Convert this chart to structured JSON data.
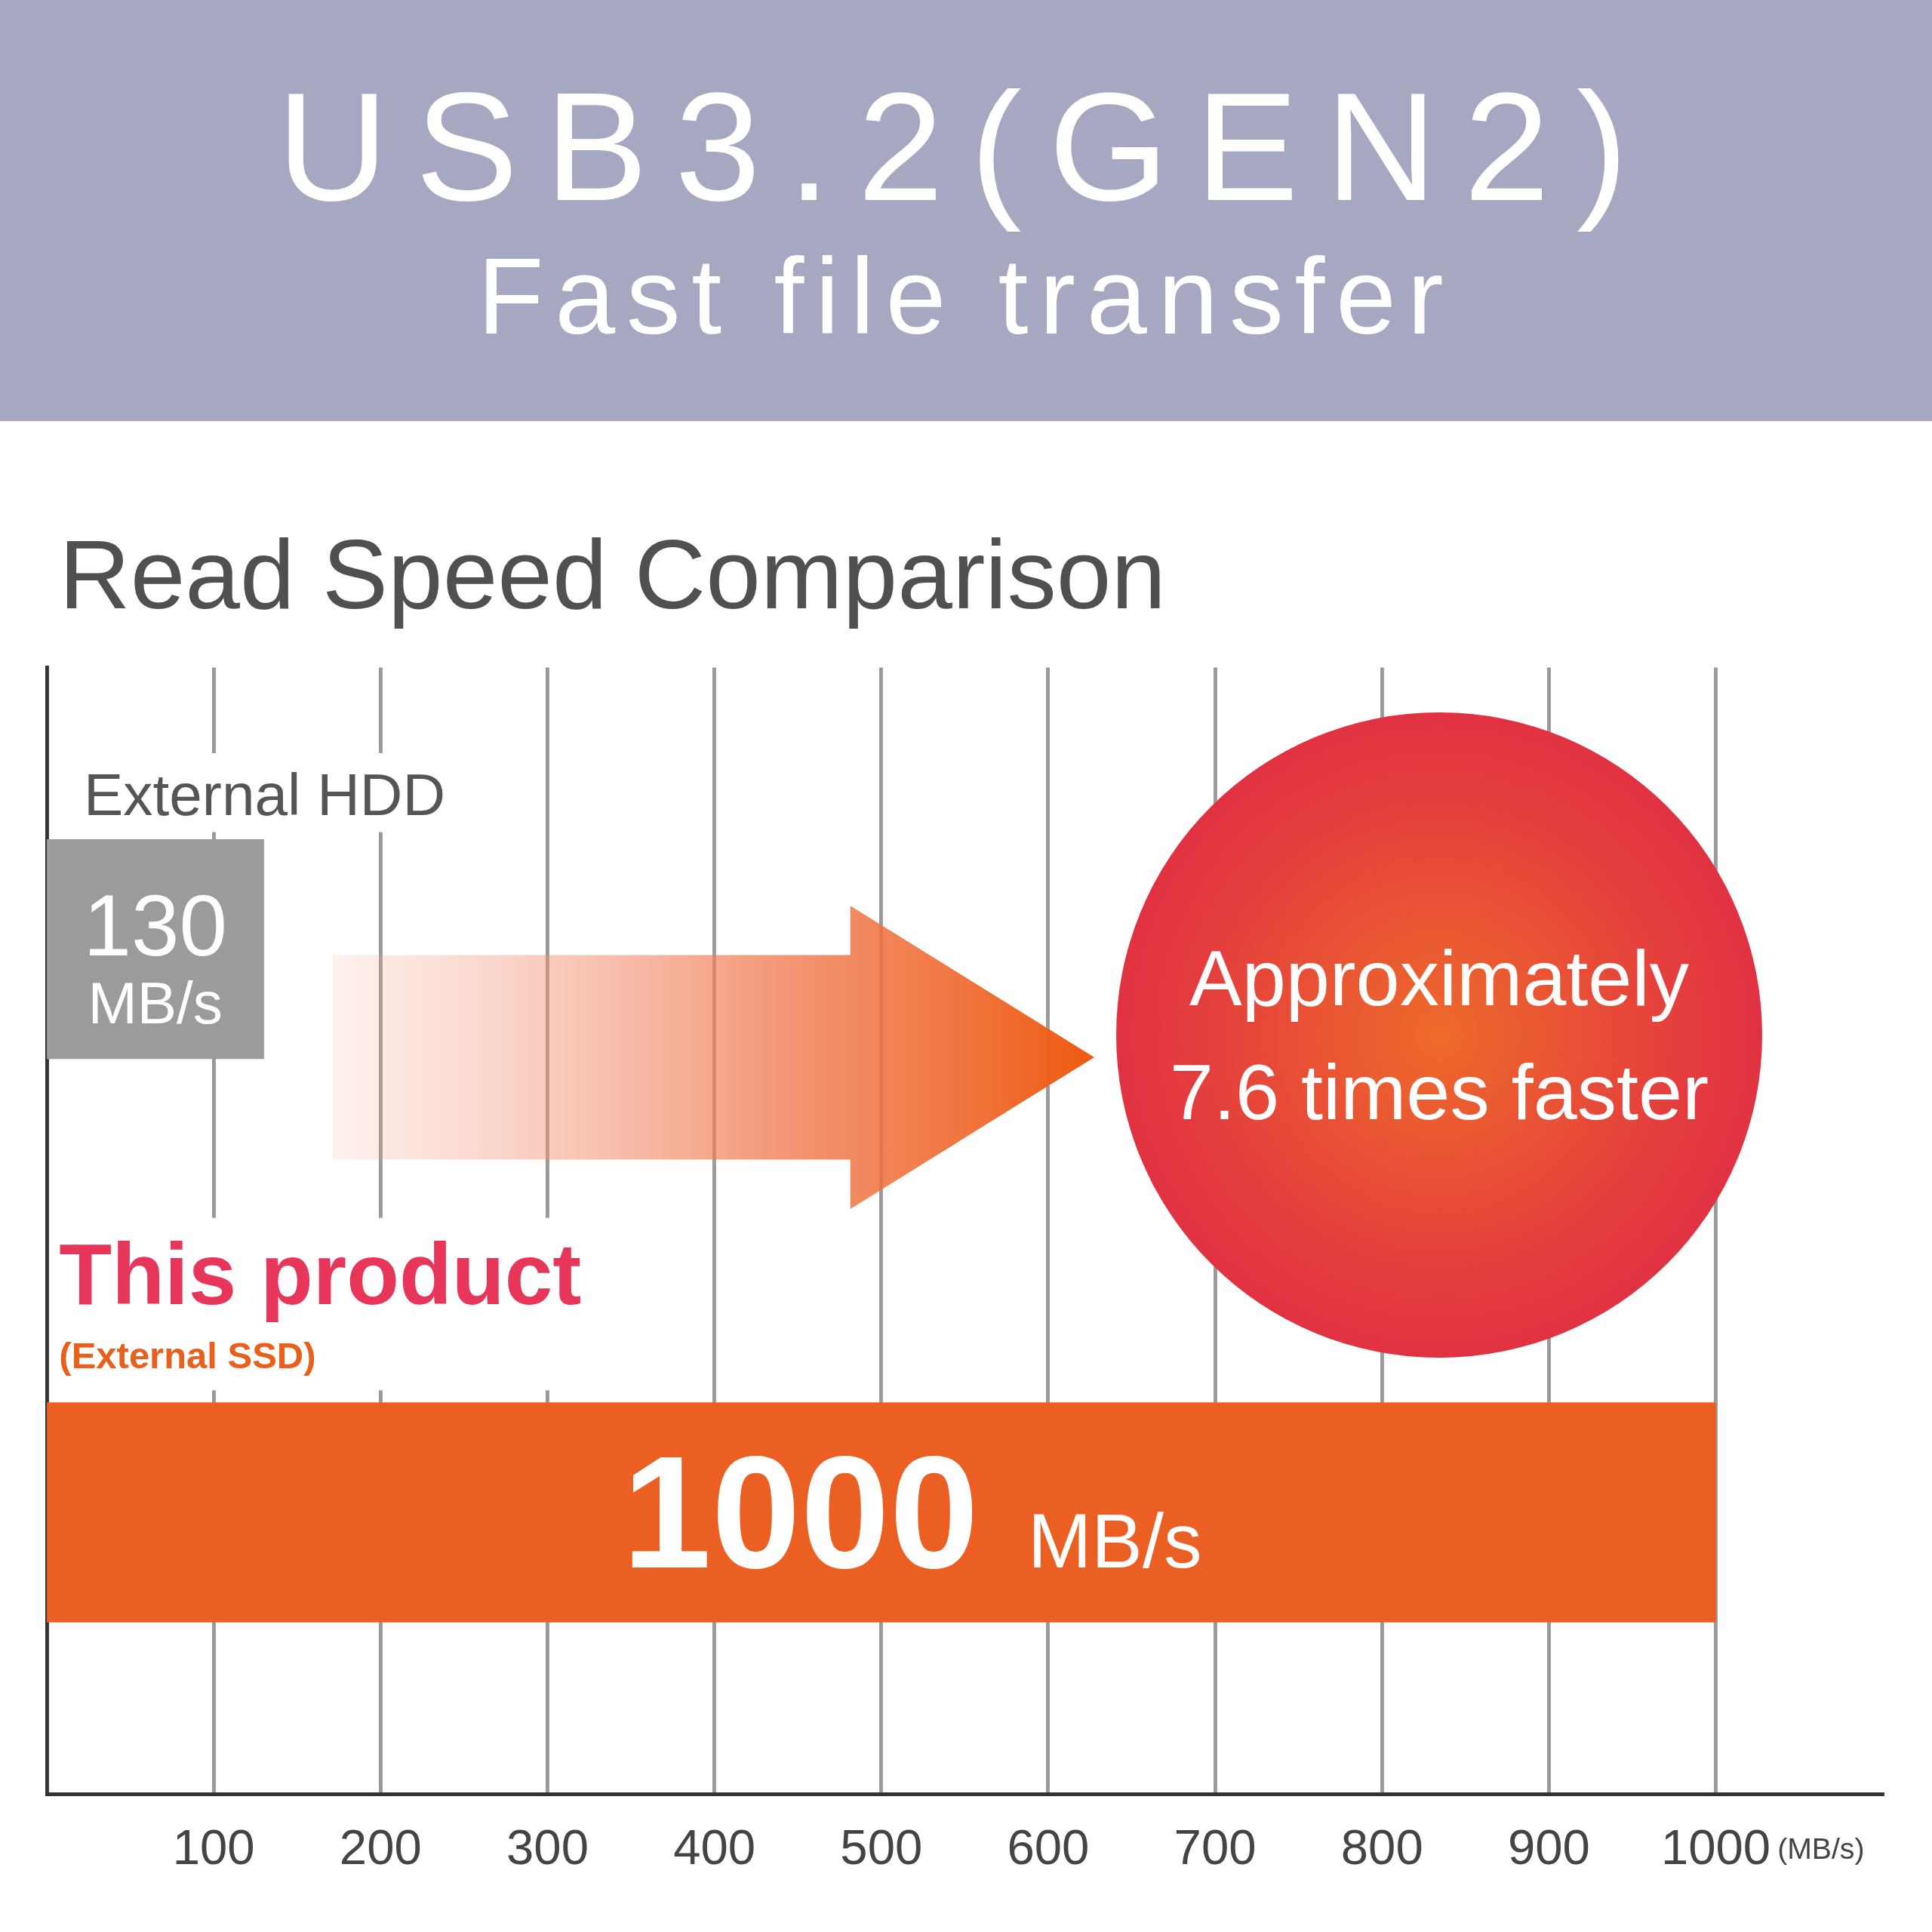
{
  "chart_data": {
    "type": "bar",
    "orientation": "horizontal",
    "title": "USB3.2(GEN2)",
    "subtitle": "Fast file transfer",
    "annotations": [
      "Read Speed Comparison",
      "Approximately 7.6 times faster"
    ],
    "categories": [
      "External HDD",
      "This product\n(External SSD)"
    ],
    "values": [
      130,
      1000
    ],
    "colors": [
      "#9b9b9b",
      "#eb5f22"
    ],
    "value_labels": [
      "130 MB/s",
      "1000 MB/s"
    ],
    "xlabel": "(MB/s)",
    "xlim": [
      0,
      1100
    ],
    "xticks": [
      100,
      200,
      300,
      400,
      500,
      600,
      700,
      800,
      900,
      1000
    ],
    "grid": "x",
    "legend": false
  }
}
